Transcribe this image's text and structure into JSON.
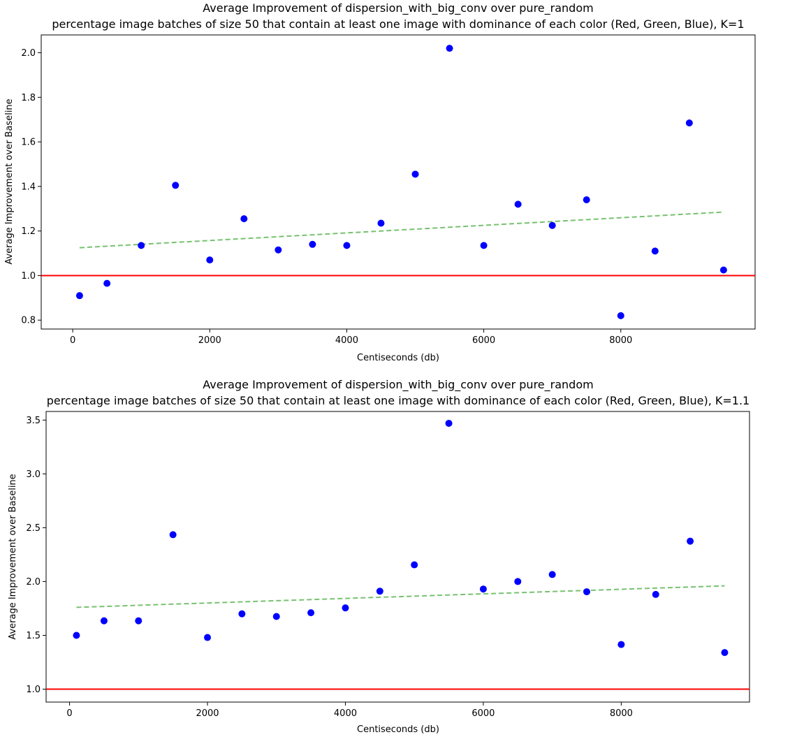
{
  "chart_data": [
    {
      "type": "scatter",
      "title": "Average Improvement of dispersion_with_big_conv over pure_random",
      "subtitle": "percentage image batches of size 50 that contain at least one image with dominance of each color (Red, Green, Blue), K=1",
      "xlabel": "Centiseconds (db)",
      "ylabel": "Average Improvement over Baseline",
      "xlim": [
        -460,
        9960
      ],
      "ylim": [
        0.76,
        2.08
      ],
      "xticks": [
        0,
        2000,
        4000,
        6000,
        8000
      ],
      "xtick_labels": [
        "0",
        "2000",
        "4000",
        "6000",
        "8000"
      ],
      "yticks": [
        0.8,
        1.0,
        1.2,
        1.4,
        1.6,
        1.8,
        2.0
      ],
      "ytick_labels": [
        "0.8",
        "1.0",
        "1.2",
        "1.4",
        "1.6",
        "1.8",
        "2.0"
      ],
      "x": [
        100,
        500,
        1000,
        1500,
        2000,
        2500,
        3000,
        3500,
        4000,
        4500,
        5000,
        5500,
        6000,
        6500,
        7000,
        7500,
        8000,
        8500,
        9000,
        9500
      ],
      "y": [
        0.91,
        0.965,
        1.135,
        1.405,
        1.07,
        1.255,
        1.115,
        1.14,
        1.135,
        1.235,
        1.455,
        2.02,
        1.135,
        1.32,
        1.225,
        1.34,
        0.82,
        1.11,
        1.685,
        1.025
      ],
      "baseline": 1.0,
      "trend": {
        "x": [
          100,
          9500
        ],
        "y": [
          1.125,
          1.285
        ]
      },
      "colors": {
        "points": "#0000ff",
        "baseline": "#ff0000",
        "trend": "#77c26f"
      }
    },
    {
      "type": "scatter",
      "title": "Average Improvement of dispersion_with_big_conv over pure_random",
      "subtitle": "percentage image batches of size 50 that contain at least one image with dominance of each color (Red, Green, Blue), K=1.1",
      "xlabel": "Centiseconds (db)",
      "ylabel": "Average Improvement over Baseline",
      "xlim": [
        -340,
        9860
      ],
      "ylim": [
        0.88,
        3.58
      ],
      "xticks": [
        0,
        2000,
        4000,
        6000,
        8000
      ],
      "xtick_labels": [
        "0",
        "2000",
        "4000",
        "6000",
        "8000"
      ],
      "yticks": [
        1.0,
        1.5,
        2.0,
        2.5,
        3.0,
        3.5
      ],
      "ytick_labels": [
        "1.0",
        "1.5",
        "2.0",
        "2.5",
        "3.0",
        "3.5"
      ],
      "x": [
        100,
        500,
        1000,
        1500,
        2000,
        2500,
        3000,
        3500,
        4000,
        4500,
        5000,
        5500,
        6000,
        6500,
        7000,
        7500,
        8000,
        8500,
        9000,
        9500
      ],
      "y": [
        1.5,
        1.635,
        1.635,
        2.435,
        1.48,
        1.7,
        1.675,
        1.71,
        1.755,
        1.91,
        2.155,
        3.47,
        1.93,
        2.0,
        2.065,
        1.905,
        1.415,
        1.88,
        2.375,
        1.34
      ],
      "baseline": 1.0,
      "trend": {
        "x": [
          100,
          9500
        ],
        "y": [
          1.76,
          1.96
        ]
      },
      "colors": {
        "points": "#0000ff",
        "baseline": "#ff0000",
        "trend": "#77c26f"
      }
    }
  ]
}
